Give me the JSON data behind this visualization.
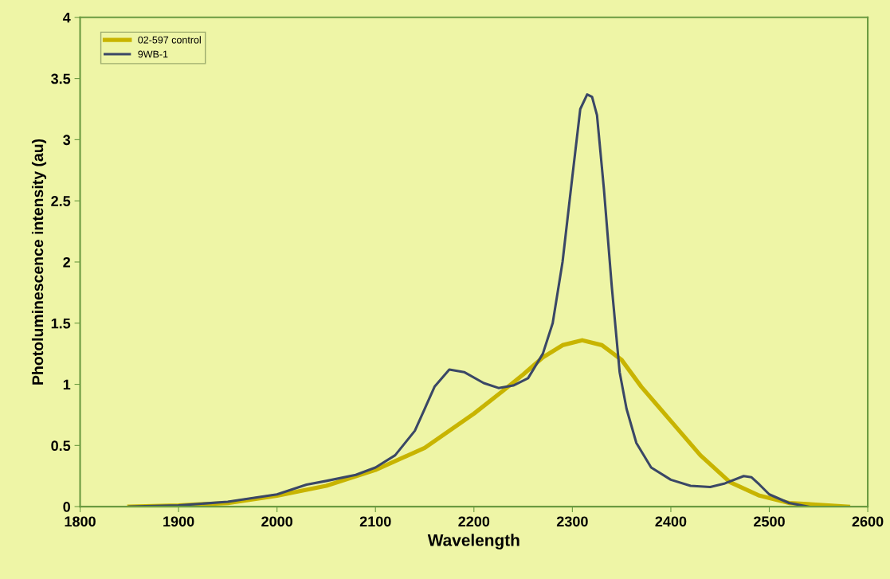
{
  "chart_data": {
    "type": "line",
    "xlabel": "Wavelength",
    "ylabel": "Photoluminescence intensity (au)",
    "xlim": [
      1800,
      2600
    ],
    "xticks": [
      1800,
      1900,
      2000,
      2100,
      2200,
      2300,
      2400,
      2500,
      2600
    ],
    "ylim": [
      0,
      4
    ],
    "yticks": [
      0,
      0.5,
      1,
      1.5,
      2,
      2.5,
      3,
      3.5,
      4
    ],
    "grid": false,
    "legend": "top left",
    "marker": "none",
    "line_style": "solid",
    "series": [
      {
        "name": "02-597 control",
        "color": "#c8b400",
        "x": [
          1850,
          1900,
          1950,
          2000,
          2050,
          2100,
          2150,
          2200,
          2230,
          2250,
          2270,
          2290,
          2310,
          2330,
          2350,
          2370,
          2400,
          2430,
          2460,
          2490,
          2520,
          2560,
          2580
        ],
        "values": [
          0,
          0.01,
          0.03,
          0.09,
          0.17,
          0.3,
          0.48,
          0.76,
          0.95,
          1.08,
          1.22,
          1.32,
          1.36,
          1.32,
          1.2,
          0.98,
          0.7,
          0.42,
          0.2,
          0.09,
          0.03,
          0.01,
          0
        ]
      },
      {
        "name": "9WB-1",
        "color": "#3a4766",
        "x": [
          1850,
          1900,
          1950,
          2000,
          2030,
          2050,
          2080,
          2100,
          2120,
          2140,
          2150,
          2160,
          2175,
          2190,
          2210,
          2225,
          2240,
          2255,
          2270,
          2280,
          2290,
          2300,
          2308,
          2315,
          2320,
          2325,
          2332,
          2340,
          2348,
          2355,
          2365,
          2380,
          2400,
          2420,
          2440,
          2455,
          2474,
          2482,
          2490,
          2500,
          2520,
          2540
        ],
        "values": [
          0,
          0.01,
          0.04,
          0.1,
          0.18,
          0.21,
          0.26,
          0.32,
          0.42,
          0.62,
          0.8,
          0.98,
          1.12,
          1.1,
          1.01,
          0.97,
          0.99,
          1.05,
          1.25,
          1.5,
          2.0,
          2.7,
          3.25,
          3.37,
          3.35,
          3.2,
          2.6,
          1.8,
          1.1,
          0.8,
          0.52,
          0.32,
          0.22,
          0.17,
          0.16,
          0.19,
          0.25,
          0.24,
          0.18,
          0.1,
          0.03,
          0
        ]
      }
    ]
  }
}
